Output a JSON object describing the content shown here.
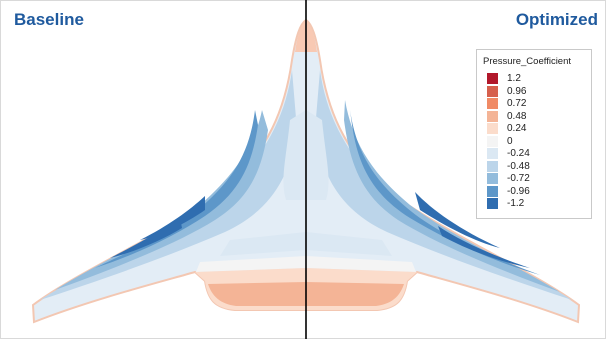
{
  "panels": {
    "left_title": "Baseline",
    "right_title": "Optimized"
  },
  "legend": {
    "title": "Pressure_Coefficient",
    "levels": [
      {
        "label": "1.2",
        "color": "#b2182b"
      },
      {
        "label": "0.96",
        "color": "#d6604d"
      },
      {
        "label": "0.72",
        "color": "#f08a65"
      },
      {
        "label": "0.48",
        "color": "#f4b496"
      },
      {
        "label": "0.24",
        "color": "#fbdccb"
      },
      {
        "label": "0",
        "color": "#f4f4f4"
      },
      {
        "label": "-0.24",
        "color": "#dbe8f3"
      },
      {
        "label": "-0.48",
        "color": "#bcd5ea"
      },
      {
        "label": "-0.72",
        "color": "#93bcdc"
      },
      {
        "label": "-0.96",
        "color": "#5d97c9"
      },
      {
        "label": "-1.2",
        "color": "#2f6db0"
      }
    ]
  },
  "colors": {
    "title": "#1f5a9e",
    "divider": "#000000"
  }
}
